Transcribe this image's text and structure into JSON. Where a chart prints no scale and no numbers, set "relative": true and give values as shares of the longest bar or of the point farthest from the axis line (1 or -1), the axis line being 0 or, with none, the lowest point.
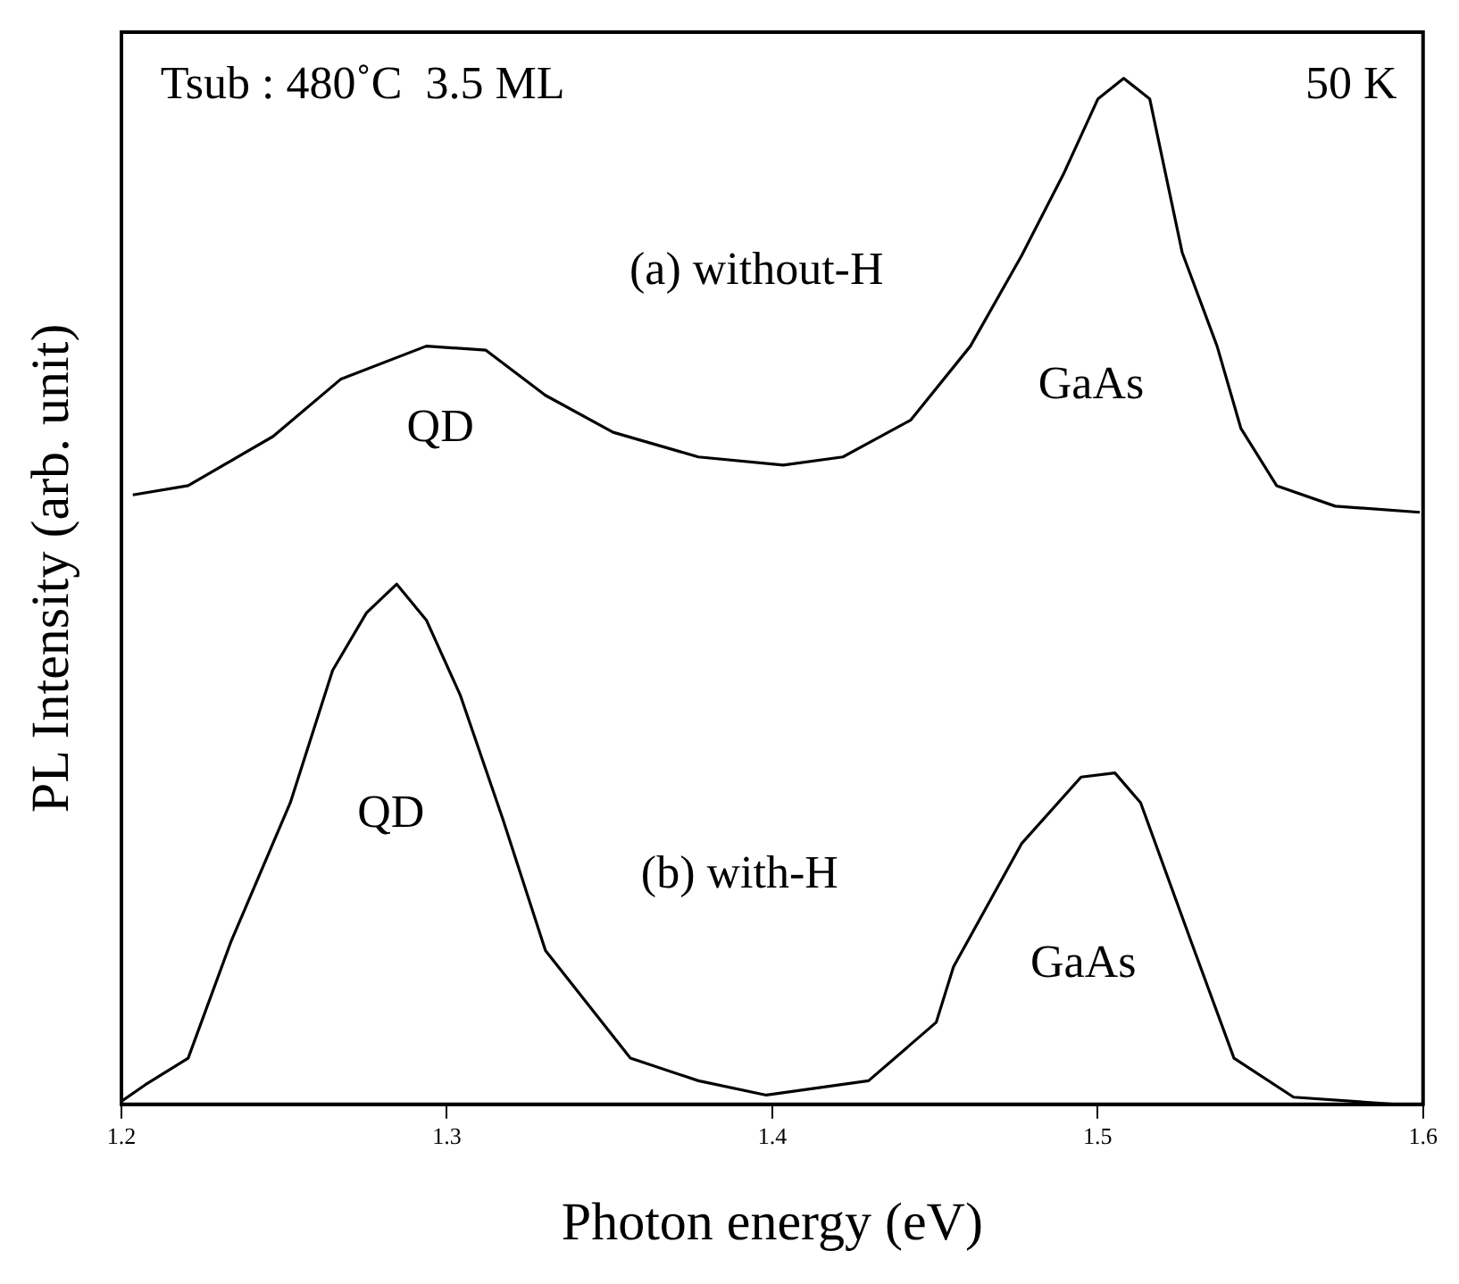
{
  "chart_data": {
    "type": "line",
    "relative": true,
    "xlabel": "Photon energy (eV)",
    "ylabel": "PL Intensity (arb. unit)",
    "xlim": [
      1.2,
      1.6
    ],
    "xticks": [
      1.2,
      1.3,
      1.4,
      1.5,
      1.6
    ],
    "grid": false,
    "legend": false,
    "marker": "none",
    "line_style": "solid",
    "annotations": [
      "Tsub : 480˚C  3.5 ML",
      "50 K",
      "QD",
      "GaAs",
      "QD",
      "GaAs"
    ],
    "series": [
      {
        "name": "(a) without-H",
        "color": "#000000",
        "x": [
          1.2035,
          1.2205,
          1.2466,
          1.2675,
          1.2937,
          1.312,
          1.3303,
          1.3511,
          1.3773,
          1.4034,
          1.4217,
          1.4426,
          1.4609,
          1.4766,
          1.4897,
          1.5001,
          1.508,
          1.516,
          1.526,
          1.5367,
          1.544,
          1.555,
          1.573,
          1.599
        ],
        "values": [
          0.594,
          0.603,
          0.651,
          0.707,
          0.739,
          0.735,
          0.691,
          0.655,
          0.631,
          0.623,
          0.631,
          0.667,
          0.739,
          0.827,
          0.908,
          0.98,
          1,
          0.98,
          0.83,
          0.739,
          0.659,
          0.603,
          0.583,
          0.577
        ]
      },
      {
        "name": "(b) with-H",
        "color": "#000000",
        "x": [
          1.2,
          1.2073,
          1.2205,
          1.2336,
          1.2519,
          1.2649,
          1.2753,
          1.2846,
          1.2937,
          1.3041,
          1.3172,
          1.3303,
          1.3564,
          1.3773,
          1.3982,
          1.4296,
          1.4504,
          1.4557,
          1.4766,
          1.4949,
          1.5053,
          1.5132,
          1.5288,
          1.5419,
          1.5602,
          1.5916
        ],
        "values": [
          0.003,
          0.019,
          0.045,
          0.158,
          0.294,
          0.423,
          0.479,
          0.507,
          0.472,
          0.399,
          0.278,
          0.15,
          0.045,
          0.023,
          0.009,
          0.023,
          0.08,
          0.134,
          0.254,
          0.319,
          0.323,
          0.294,
          0.158,
          0.045,
          0.007,
          0.0
        ]
      }
    ]
  }
}
